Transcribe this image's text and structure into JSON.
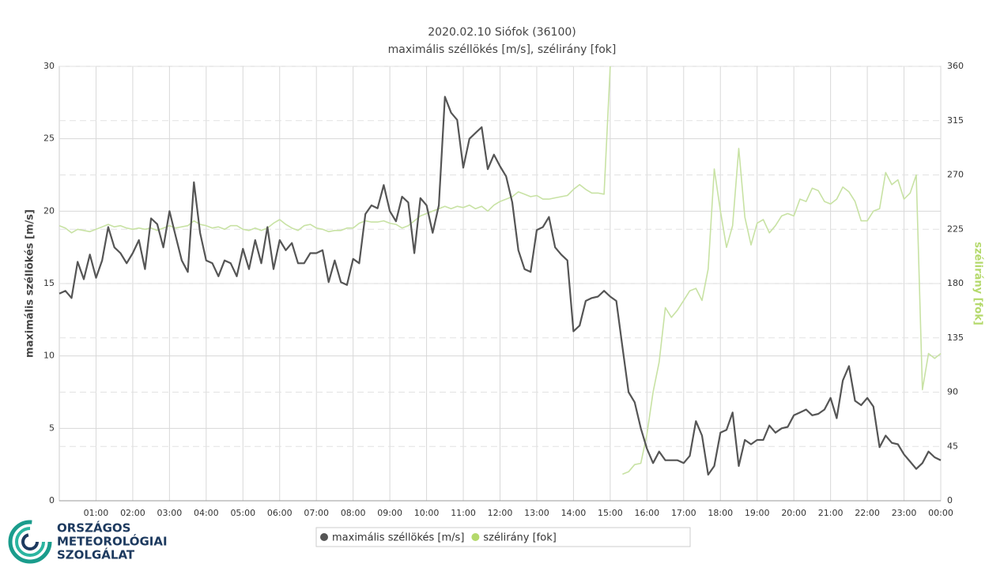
{
  "chart_data": {
    "type": "line",
    "title": "2020.02.10 Siófok (36100)",
    "subtitle": "maximális széllökés [m/s], szélirány [fok]",
    "ylabel": "maximális széllökés [m/s]",
    "y2label": "szélirány [fok]",
    "x": [
      0,
      10,
      20,
      30,
      40,
      50,
      60,
      70,
      80,
      90,
      100,
      110,
      120,
      130,
      140,
      150,
      160,
      170,
      180,
      190,
      200,
      210,
      220,
      230,
      240,
      250,
      260,
      270,
      280,
      290,
      300,
      310,
      320,
      330,
      340,
      350,
      360,
      370,
      380,
      390,
      400,
      410,
      420,
      430,
      440,
      450,
      460,
      470,
      480,
      490,
      500,
      510,
      520,
      530,
      540,
      550,
      560,
      570,
      580,
      590,
      600,
      610,
      620,
      630,
      640,
      650,
      660,
      670,
      680,
      690,
      700,
      710,
      720,
      730,
      740,
      750,
      760,
      770,
      780,
      790,
      800,
      810,
      820,
      830,
      840,
      850,
      860,
      870,
      880,
      890,
      900,
      910,
      920,
      930,
      940,
      950,
      960,
      970,
      980,
      990,
      1000,
      1010,
      1020,
      1030,
      1040,
      1050,
      1060,
      1070,
      1080,
      1090,
      1100,
      1110,
      1120,
      1130,
      1140,
      1150,
      1160,
      1170,
      1180,
      1190,
      1200,
      1210,
      1220,
      1230,
      1240,
      1250,
      1260,
      1270,
      1280,
      1290,
      1300,
      1310,
      1320,
      1330,
      1340,
      1350,
      1360,
      1370,
      1380,
      1390,
      1400,
      1410,
      1420,
      1430,
      1440
    ],
    "xlim": [
      0,
      1440
    ],
    "xticks": [
      {
        "value": 60,
        "label": "01:00"
      },
      {
        "value": 120,
        "label": "02:00"
      },
      {
        "value": 180,
        "label": "03:00"
      },
      {
        "value": 240,
        "label": "04:00"
      },
      {
        "value": 300,
        "label": "05:00"
      },
      {
        "value": 360,
        "label": "06:00"
      },
      {
        "value": 420,
        "label": "07:00"
      },
      {
        "value": 480,
        "label": "08:00"
      },
      {
        "value": 540,
        "label": "09:00"
      },
      {
        "value": 600,
        "label": "10:00"
      },
      {
        "value": 660,
        "label": "11:00"
      },
      {
        "value": 720,
        "label": "12:00"
      },
      {
        "value": 780,
        "label": "13:00"
      },
      {
        "value": 840,
        "label": "14:00"
      },
      {
        "value": 900,
        "label": "15:00"
      },
      {
        "value": 960,
        "label": "16:00"
      },
      {
        "value": 1020,
        "label": "17:00"
      },
      {
        "value": 1080,
        "label": "18:00"
      },
      {
        "value": 1140,
        "label": "19:00"
      },
      {
        "value": 1200,
        "label": "20:00"
      },
      {
        "value": 1260,
        "label": "21:00"
      },
      {
        "value": 1320,
        "label": "22:00"
      },
      {
        "value": 1380,
        "label": "23:00"
      },
      {
        "value": 1440,
        "label": "00:00"
      }
    ],
    "ylim": [
      0,
      30
    ],
    "yticks": [
      0,
      5,
      10,
      15,
      20,
      25,
      30
    ],
    "y2lim": [
      0,
      360
    ],
    "y2ticks": [
      0,
      45,
      90,
      135,
      180,
      225,
      270,
      315,
      360
    ],
    "grid": true,
    "series": [
      {
        "name": "maximális széllökés [m/s]",
        "color": "#555555",
        "values": [
          14.3,
          14.5,
          14.0,
          16.5,
          15.3,
          17.0,
          15.4,
          16.6,
          18.9,
          17.5,
          17.1,
          16.4,
          17.1,
          18.0,
          16.0,
          19.5,
          19.1,
          17.5,
          20.0,
          18.3,
          16.6,
          15.8,
          22.0,
          18.5,
          16.6,
          16.4,
          15.5,
          16.6,
          16.4,
          15.5,
          17.4,
          16.0,
          18.0,
          16.4,
          18.9,
          16.0,
          18.0,
          17.3,
          17.8,
          16.4,
          16.4,
          17.1,
          17.1,
          17.3,
          15.1,
          16.6,
          15.1,
          14.9,
          16.7,
          16.4,
          19.8,
          20.4,
          20.2,
          21.8,
          20.0,
          19.3,
          21.0,
          20.6,
          17.1,
          20.9,
          20.4,
          18.5,
          20.4,
          27.9,
          26.8,
          26.3,
          23.0,
          25.0,
          25.4,
          25.8,
          22.9,
          23.9,
          23.1,
          22.4,
          20.6,
          17.3,
          16.0,
          15.8,
          18.7,
          18.9,
          19.6,
          17.5,
          17.0,
          16.6,
          11.7,
          12.1,
          13.8,
          14.0,
          14.1,
          14.5,
          14.1,
          13.8,
          10.6,
          7.5,
          6.8,
          5.0,
          3.6,
          2.6,
          3.4,
          2.8,
          2.8,
          2.8,
          2.6,
          3.1,
          5.5,
          4.5,
          1.8,
          2.4,
          4.7,
          4.9,
          6.1,
          2.4,
          4.2,
          3.9,
          4.2,
          4.2,
          5.2,
          4.7,
          5.0,
          5.1,
          5.9,
          6.1,
          6.3,
          5.9,
          6.0,
          6.3,
          7.1,
          5.7,
          8.3,
          9.3,
          6.9,
          6.6,
          7.1,
          6.5,
          3.7,
          4.5,
          4.0,
          3.9,
          3.2,
          2.7,
          2.2,
          2.6,
          3.4,
          3.0,
          2.8
        ]
      },
      {
        "name": "szélirány [fok]",
        "color": "#c8e2a4",
        "axis": "y2",
        "values": [
          228,
          226,
          222,
          225,
          224,
          223,
          225,
          227,
          229,
          227,
          228,
          226,
          225,
          226,
          225,
          226,
          224,
          226,
          228,
          226,
          227,
          228,
          232,
          229,
          228,
          226,
          227,
          225,
          228,
          228,
          225,
          224,
          226,
          224,
          226,
          230,
          233,
          229,
          226,
          224,
          228,
          229,
          226,
          225,
          223,
          224,
          224,
          226,
          226,
          230,
          232,
          231,
          231,
          232,
          230,
          229,
          226,
          228,
          232,
          236,
          238,
          240,
          242,
          244,
          242,
          244,
          243,
          245,
          242,
          244,
          240,
          245,
          248,
          250,
          252,
          256,
          254,
          252,
          253,
          250,
          250,
          251,
          252,
          253,
          258,
          262,
          258,
          255,
          255,
          254,
          360,
          null,
          22,
          24,
          30,
          31,
          55,
          90,
          115,
          160,
          152,
          158,
          166,
          174,
          176,
          166,
          192,
          275,
          240,
          210,
          228,
          292,
          235,
          212,
          230,
          233,
          222,
          228,
          236,
          238,
          236,
          250,
          248,
          259,
          257,
          248,
          246,
          250,
          260,
          256,
          248,
          232,
          232,
          240,
          242,
          272,
          262,
          266,
          250,
          255,
          270,
          92,
          122,
          118,
          122
        ]
      }
    ],
    "legend_markers": [
      "#555555",
      "#b4d96b"
    ]
  },
  "logo": {
    "lines": [
      "ORSZÁGOS",
      "METEOROLÓGIAI",
      "SZOLGÁLAT"
    ]
  }
}
